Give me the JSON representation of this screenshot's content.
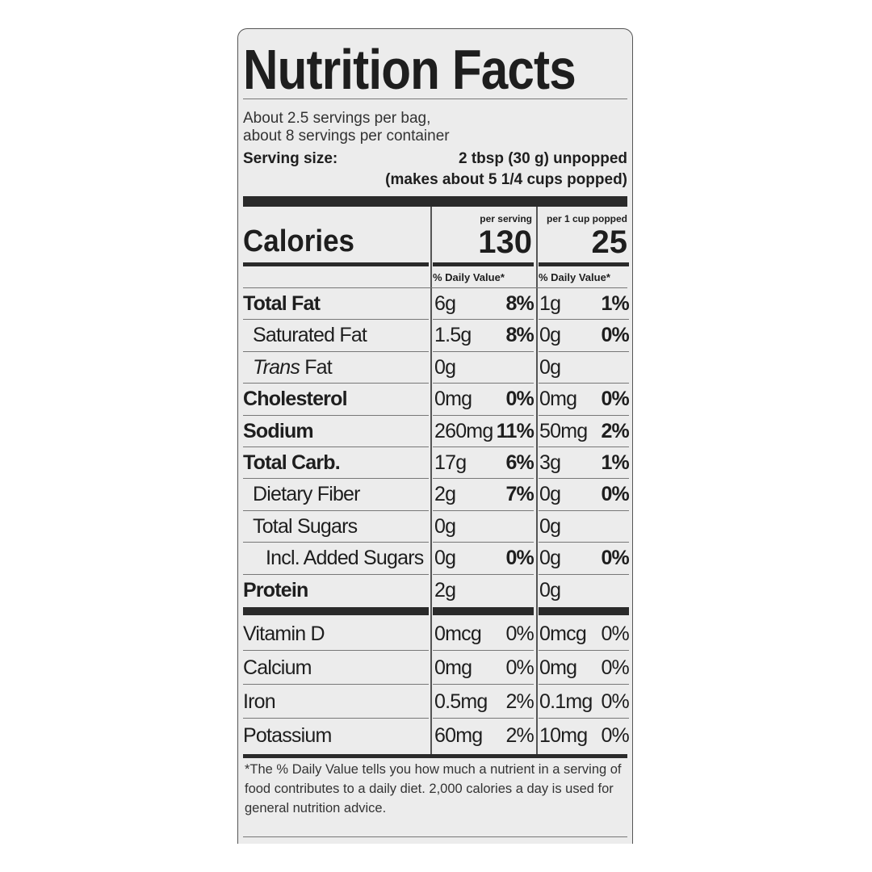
{
  "title": "Nutrition Facts",
  "servings": [
    "About 2.5 servings per bag,",
    "about 8 servings per container"
  ],
  "serving_size": {
    "label": "Serving size:",
    "value": "2 tbsp (30 g) unpopped",
    "note": "(makes about 5 1/4 cups popped)"
  },
  "columns": [
    "per serving",
    "per 1 cup popped"
  ],
  "calories": {
    "label": "Calories",
    "values": [
      "130",
      "25"
    ]
  },
  "dv_header": "% Daily Value*",
  "nutrients": [
    {
      "name": "Total Fat",
      "bold": true,
      "indent": 0,
      "a1": "6g",
      "p1": "8%",
      "a2": "1g",
      "p2": "1%"
    },
    {
      "name": "Saturated Fat",
      "bold": false,
      "indent": 1,
      "a1": "1.5g",
      "p1": "8%",
      "a2": "0g",
      "p2": "0%"
    },
    {
      "name": "Trans Fat",
      "bold": false,
      "indent": 1,
      "a1": "0g",
      "p1": "",
      "a2": "0g",
      "p2": ""
    },
    {
      "name": "Cholesterol",
      "bold": true,
      "indent": 0,
      "a1": "0mg",
      "p1": "0%",
      "a2": "0mg",
      "p2": "0%"
    },
    {
      "name": "Sodium",
      "bold": true,
      "indent": 0,
      "a1": "260mg",
      "p1": "11%",
      "a2": "50mg",
      "p2": "2%"
    },
    {
      "name": "Total Carb.",
      "bold": true,
      "indent": 0,
      "a1": "17g",
      "p1": "6%",
      "a2": "3g",
      "p2": "1%"
    },
    {
      "name": "Dietary Fiber",
      "bold": false,
      "indent": 1,
      "a1": "2g",
      "p1": "7%",
      "a2": "0g",
      "p2": "0%"
    },
    {
      "name": "Total Sugars",
      "bold": false,
      "indent": 1,
      "a1": "0g",
      "p1": "",
      "a2": "0g",
      "p2": ""
    },
    {
      "name": "Incl. Added Sugars",
      "bold": false,
      "indent": 2,
      "a1": "0g",
      "p1": "0%",
      "a2": "0g",
      "p2": "0%"
    },
    {
      "name": "Protein",
      "bold": true,
      "indent": 0,
      "a1": "2g",
      "p1": "",
      "a2": "0g",
      "p2": ""
    }
  ],
  "vitamins": [
    {
      "name": "Vitamin D",
      "a1": "0mcg",
      "p1": "0%",
      "a2": "0mcg",
      "p2": "0%"
    },
    {
      "name": "Calcium",
      "a1": "0mg",
      "p1": "0%",
      "a2": "0mg",
      "p2": "0%"
    },
    {
      "name": "Iron",
      "a1": "0.5mg",
      "p1": "2%",
      "a2": "0.1mg",
      "p2": "0%"
    },
    {
      "name": "Potassium",
      "a1": "60mg",
      "p1": "2%",
      "a2": "10mg",
      "p2": "0%"
    }
  ],
  "footnote": "*The % Daily Value tells you how much a nutrient in a serving of food contributes to a daily diet. 2,000 calories a day is used for general nutrition advice."
}
